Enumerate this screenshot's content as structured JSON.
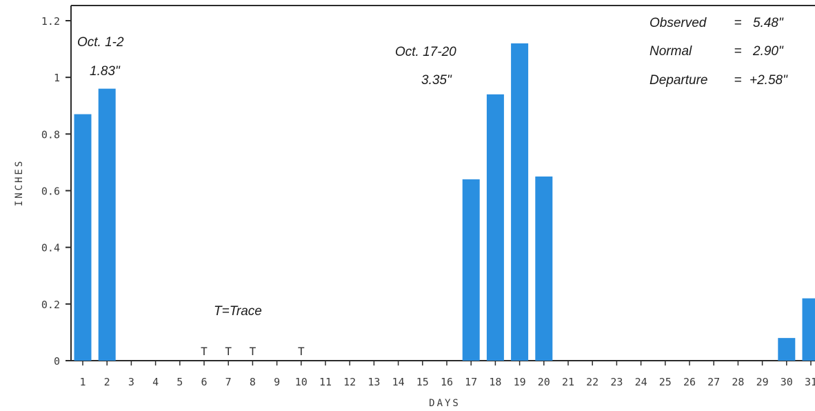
{
  "chart_data": {
    "type": "bar",
    "title_visible_fragment": "",
    "xlabel": "DAYS",
    "ylabel": "INCHES",
    "ylim": [
      0,
      1.2
    ],
    "yticks": [
      "0",
      "0.2",
      "0.4",
      "0.6",
      "0.8",
      "1",
      "1.2"
    ],
    "categories": [
      "1",
      "2",
      "3",
      "4",
      "5",
      "6",
      "7",
      "8",
      "9",
      "10",
      "11",
      "12",
      "13",
      "14",
      "15",
      "16",
      "17",
      "18",
      "19",
      "20",
      "21",
      "22",
      "23",
      "24",
      "25",
      "26",
      "27",
      "28",
      "29",
      "30",
      "31"
    ],
    "values": [
      0.87,
      0.96,
      0,
      0,
      0,
      0,
      0,
      0,
      0,
      0,
      0,
      0,
      0,
      0,
      0,
      0,
      0.64,
      0.94,
      1.12,
      0.65,
      0,
      0,
      0,
      0,
      0,
      0,
      0,
      0,
      0,
      0.08,
      0.22
    ],
    "trace_days": [
      "6",
      "7",
      "8",
      "10"
    ],
    "trace_symbol": "T",
    "bar_color": "#2a8fe0",
    "axis_color": "#2a2a2a",
    "annotations": {
      "event1_dates": "Oct.  1-2",
      "event1_total": "1.83\"",
      "event2_dates": "Oct.  17-20",
      "event2_total": "3.35\"",
      "trace_legend": "T=Trace",
      "summary": [
        {
          "label": "Observed",
          "eq": "=",
          "value": "5.48\""
        },
        {
          "label": "Normal",
          "eq": "=",
          "value": "2.90\""
        },
        {
          "label": "Departure",
          "eq": "=",
          "value": "+2.58\""
        }
      ]
    }
  }
}
